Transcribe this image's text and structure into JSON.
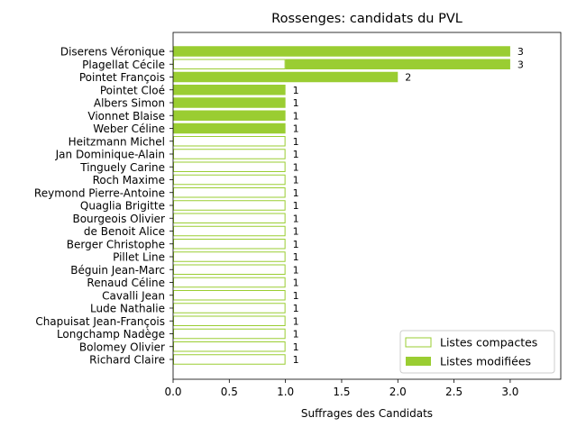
{
  "chart_data": {
    "type": "bar",
    "orientation": "horizontal",
    "stacked": true,
    "title": "Rossenges: candidats du PVL",
    "xlabel": "Suffrages des Candidats",
    "ylabel": "",
    "xlim": [
      0,
      3.45
    ],
    "xticks": [
      "0.0",
      "0.5",
      "1.0",
      "1.5",
      "2.0",
      "2.5",
      "3.0"
    ],
    "grid": false,
    "legend_position": "bottom-right",
    "colors": {
      "accent": "#9acd32",
      "text": "#000000",
      "axis": "#000000"
    },
    "categories": [
      "Diserens Véronique",
      "Plagellat Cécile",
      "Pointet François",
      "Pointet Cloé",
      "Albers Simon",
      "Vionnet Blaise",
      "Weber Céline",
      "Heitzmann Michel",
      "Jan Dominique-Alain",
      "Tinguely Carine",
      "Roch Maxime",
      "Reymond Pierre-Antoine",
      "Quaglia Brigitte",
      "Bourgeois Olivier",
      "de Benoit Alice",
      "Berger Christophe",
      "Pillet Line",
      "Béguin Jean-Marc",
      "Renaud Céline",
      "Cavalli Jean",
      "Lude Nathalie",
      "Chapuisat Jean-François",
      "Longchamp Nadège",
      "Bolomey Olivier",
      "Richard Claire"
    ],
    "series": [
      {
        "name": "Listes compactes",
        "style": "outline",
        "values": [
          0,
          1,
          0,
          0,
          0,
          0,
          0,
          1,
          1,
          1,
          1,
          1,
          1,
          1,
          1,
          1,
          1,
          1,
          1,
          1,
          1,
          1,
          1,
          1,
          1
        ]
      },
      {
        "name": "Listes modifiées",
        "style": "filled",
        "values": [
          3,
          2,
          2,
          1,
          1,
          1,
          1,
          0,
          0,
          0,
          0,
          0,
          0,
          0,
          0,
          0,
          0,
          0,
          0,
          0,
          0,
          0,
          0,
          0,
          0
        ]
      }
    ],
    "totals": [
      "3",
      "3",
      "2",
      "1",
      "1",
      "1",
      "1",
      "1",
      "1",
      "1",
      "1",
      "1",
      "1",
      "1",
      "1",
      "1",
      "1",
      "1",
      "1",
      "1",
      "1",
      "1",
      "1",
      "1",
      "1"
    ]
  }
}
